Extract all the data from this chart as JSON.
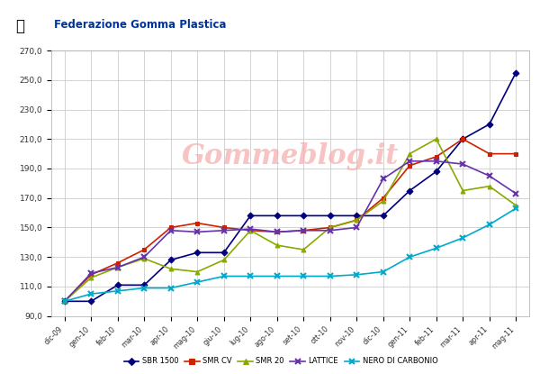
{
  "x_labels": [
    "dic-09",
    "gen-10",
    "feb-10",
    "mar-10",
    "apr-10",
    "mag-10",
    "giu-10",
    "lug-10",
    "ago-10",
    "set-10",
    "ott-10",
    "nov-10",
    "dic-10",
    "gen-11",
    "feb-11",
    "mar-11",
    "apr-11",
    "mag-11"
  ],
  "SBR_1500": [
    100,
    100,
    111,
    111,
    128,
    133,
    133,
    158,
    158,
    158,
    158,
    158,
    158,
    175,
    188,
    210,
    220,
    255
  ],
  "SMR_CV": [
    100,
    118,
    126,
    135,
    150,
    153,
    150,
    148,
    147,
    148,
    150,
    155,
    170,
    192,
    198,
    210,
    200,
    200
  ],
  "SMR_20": [
    100,
    116,
    123,
    129,
    122,
    120,
    128,
    148,
    138,
    135,
    150,
    155,
    168,
    200,
    210,
    175,
    178,
    165
  ],
  "LATTICE": [
    100,
    119,
    123,
    130,
    148,
    147,
    148,
    149,
    147,
    148,
    148,
    150,
    183,
    195,
    195,
    193,
    185,
    173
  ],
  "NERO_DI_CARBONIO": [
    100,
    105,
    107,
    109,
    109,
    113,
    117,
    117,
    117,
    117,
    117,
    118,
    120,
    130,
    136,
    143,
    152,
    163
  ],
  "ylim": [
    90,
    270
  ],
  "yticks": [
    90,
    110,
    130,
    150,
    170,
    190,
    210,
    230,
    250,
    270
  ],
  "colors": {
    "SBR_1500": "#00007F",
    "SMR_CV": "#CC2200",
    "SMR_20": "#88AA00",
    "LATTICE": "#6633AA",
    "NERO_DI_CARBONIO": "#00AACC"
  },
  "markers": {
    "SBR_1500": "D",
    "SMR_CV": "s",
    "SMR_20": "^",
    "LATTICE": "x",
    "NERO_DI_CARBONIO": "x"
  },
  "legend_labels": [
    "SBR 1500",
    "SMR CV",
    "SMR 20",
    "LATTICE",
    "NERO DI CARBONIO"
  ],
  "watermark": "Gommeblog.it",
  "header_text": "Federazione Gomma Plastica",
  "background_color": "#FFFFFF",
  "grid_color": "#CCCCCC",
  "fig_width": 6.0,
  "fig_height": 4.15,
  "dpi": 100
}
